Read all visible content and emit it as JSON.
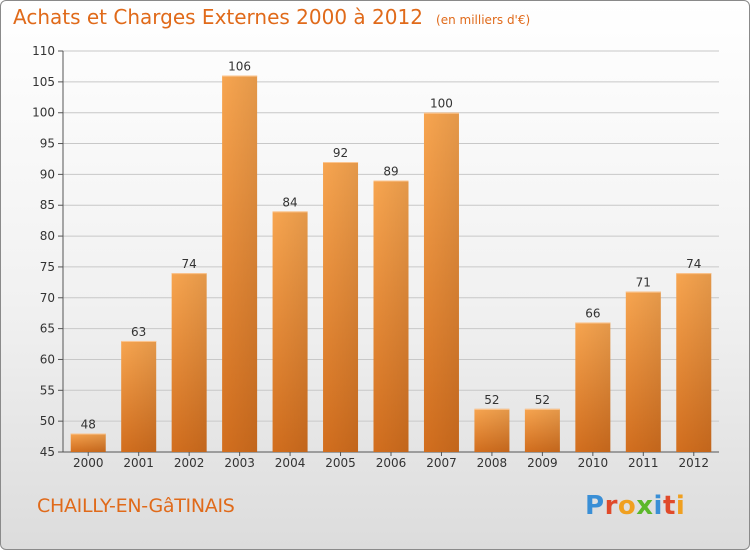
{
  "title": "Achats et Charges Externes 2000 à 2012",
  "unit": "(en milliers d'€)",
  "commune": "CHAILLY-EN-GâTINAIS",
  "logo": {
    "letters": [
      "P",
      "r",
      "o",
      "x",
      "i",
      "t",
      "i"
    ],
    "colors": [
      "#3a8fd6",
      "#e04a2a",
      "#f0a020",
      "#5cb82a",
      "#3a8fd6",
      "#e04a2a",
      "#f0a020"
    ]
  },
  "colors": {
    "bar": "#f0923a",
    "bar_dark": "#d26e1e",
    "accent": "#e06a1a"
  },
  "chart_data": {
    "type": "bar",
    "title": "Achats et Charges Externes 2000 à 2012",
    "subtitle": "(en milliers d'€)",
    "categories": [
      "2000",
      "2001",
      "2002",
      "2003",
      "2004",
      "2005",
      "2006",
      "2007",
      "2008",
      "2009",
      "2010",
      "2011",
      "2012"
    ],
    "values": [
      48,
      63,
      74,
      106,
      84,
      92,
      89,
      100,
      52,
      52,
      66,
      71,
      74
    ],
    "ylim": [
      45,
      110
    ],
    "yticks": [
      45,
      50,
      55,
      60,
      65,
      70,
      75,
      80,
      85,
      90,
      95,
      100,
      105,
      110
    ],
    "grid": true,
    "xlabel": "",
    "ylabel": ""
  }
}
